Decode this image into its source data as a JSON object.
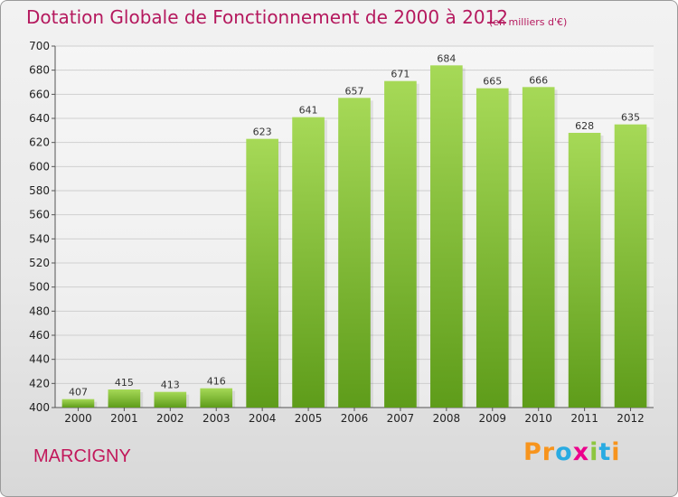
{
  "header": {
    "title": "Dotation Globale de Fonctionnement de 2000 à 2012",
    "unit_note": "(en milliers d'€)"
  },
  "footer": {
    "commune": "MARCIGNY",
    "logo_text": "Proxiti",
    "logo_colors": [
      "#f7941d",
      "#f7941d",
      "#29abe2",
      "#ec008c",
      "#8dc63f",
      "#29abe2",
      "#f7941d"
    ]
  },
  "colors": {
    "title": "#b5195e",
    "bar_light": "#a6d957",
    "bar_dark": "#5e9c1a"
  },
  "chart_data": {
    "type": "bar",
    "categories": [
      "2000",
      "2001",
      "2002",
      "2003",
      "2004",
      "2005",
      "2006",
      "2007",
      "2008",
      "2009",
      "2010",
      "2011",
      "2012"
    ],
    "values": [
      407,
      415,
      413,
      416,
      623,
      641,
      657,
      671,
      684,
      665,
      666,
      628,
      635
    ],
    "title": "Dotation Globale de Fonctionnement de 2000 à 2012",
    "ylim": [
      400,
      700
    ],
    "ytick_step": 20,
    "grid": true,
    "legend": "none"
  }
}
